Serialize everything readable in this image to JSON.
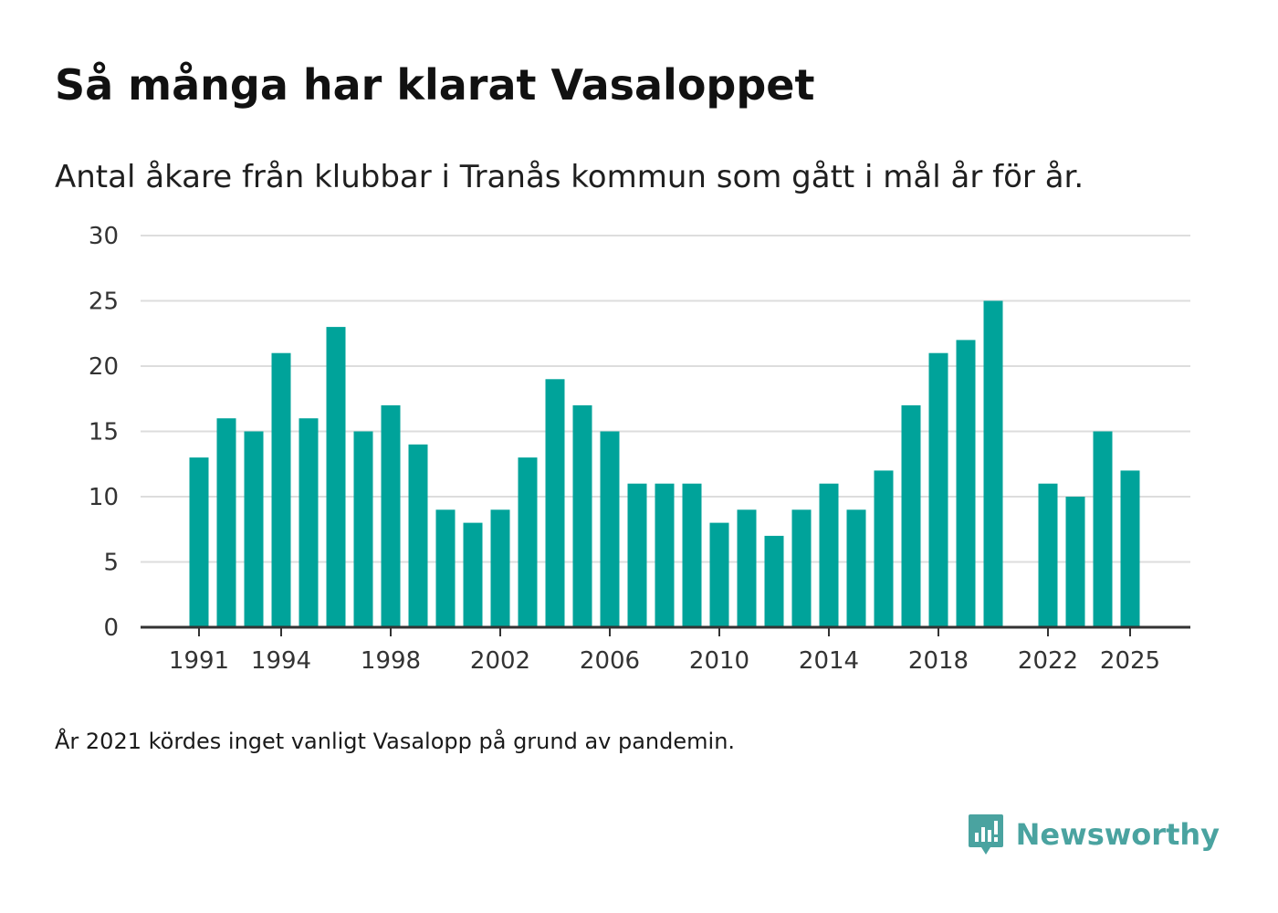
{
  "title": "Så många har klarat Vasaloppet",
  "subtitle": "Antal åkare från klubbar i Tranås kommun som gått i mål år för år.",
  "footnote": "År 2021 kördes inget vanligt Vasalopp på grund av pandemin.",
  "brand": {
    "name": "Newsworthy",
    "icon": "newsworthy-logo-icon"
  },
  "colors": {
    "bar": "#00a39a",
    "grid": "#dddddd",
    "axis": "#333333",
    "brand": "#4aa3a0"
  },
  "chart_data": {
    "type": "bar",
    "title": "Så många har klarat Vasaloppet",
    "xlabel": "",
    "ylabel": "",
    "ylim": [
      0,
      30
    ],
    "yticks": [
      0,
      5,
      10,
      15,
      20,
      25,
      30
    ],
    "xticks": [
      1991,
      1994,
      1998,
      2002,
      2006,
      2010,
      2014,
      2018,
      2022,
      2025
    ],
    "grid": true,
    "categories": [
      1991,
      1992,
      1993,
      1994,
      1995,
      1996,
      1997,
      1998,
      1999,
      2000,
      2001,
      2002,
      2003,
      2004,
      2005,
      2006,
      2007,
      2008,
      2009,
      2010,
      2011,
      2012,
      2013,
      2014,
      2015,
      2016,
      2017,
      2018,
      2019,
      2020,
      2021,
      2022,
      2023,
      2024,
      2025
    ],
    "values": [
      13,
      16,
      15,
      21,
      16,
      23,
      15,
      17,
      14,
      9,
      8,
      9,
      13,
      19,
      17,
      15,
      11,
      11,
      11,
      8,
      9,
      7,
      9,
      11,
      9,
      12,
      17,
      21,
      22,
      25,
      null,
      11,
      10,
      15,
      12
    ]
  }
}
